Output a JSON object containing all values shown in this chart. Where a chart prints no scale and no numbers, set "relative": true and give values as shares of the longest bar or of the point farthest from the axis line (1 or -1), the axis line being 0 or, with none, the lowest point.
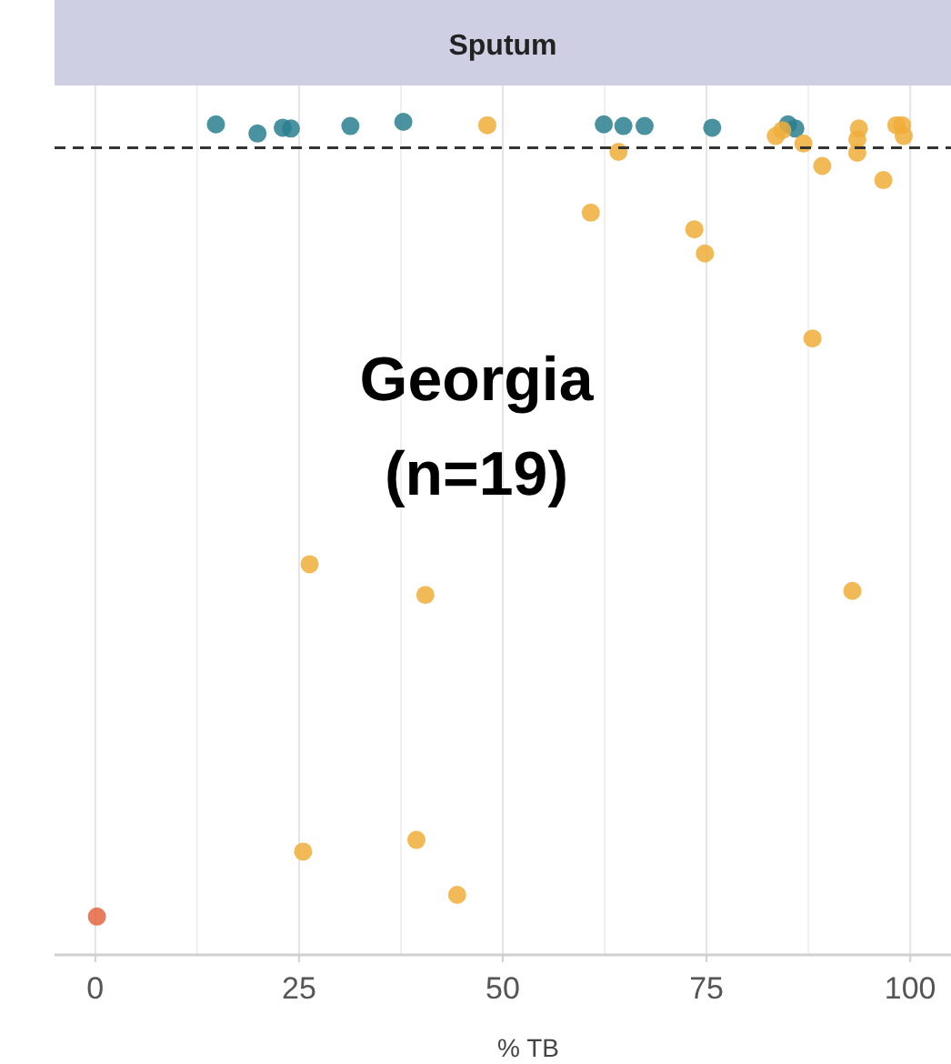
{
  "chart_data": {
    "type": "scatter",
    "title": "Sputum",
    "xlabel": "% TB",
    "relative": true,
    "xlim": [
      -5,
      105
    ],
    "xticks": [
      0,
      25,
      50,
      75,
      100
    ],
    "grid": "x",
    "marker": "circle",
    "annotations": [
      "Georgia\n(n=19)"
    ],
    "ref_lines": [
      {
        "axis": "y",
        "value": 0.969,
        "color": "#333333",
        "line_style": "dashed"
      }
    ],
    "series": [
      {
        "color": "#2a7f8f",
        "x": [
          14.8,
          19.9,
          23.0,
          24.0,
          31.3,
          37.8,
          62.4,
          64.8,
          67.4,
          75.7,
          85.0,
          85.9
        ],
        "values": [
          0.997,
          0.986,
          0.993,
          0.992,
          0.995,
          1,
          0.997,
          0.995,
          0.995,
          0.993,
          0.997,
          0.992
        ]
      },
      {
        "color": "#f0ad3a",
        "x": [
          48.1,
          64.2,
          60.8,
          73.5,
          74.8,
          83.5,
          84.3,
          86.9,
          89.2,
          93.7,
          93.5,
          93.5,
          96.7,
          98.3,
          99.0,
          99.2,
          88.0,
          26.3,
          40.5,
          92.9,
          25.5,
          39.4,
          44.4
        ],
        "values": [
          0.996,
          0.964,
          0.891,
          0.871,
          0.842,
          0.983,
          0.99,
          0.974,
          0.947,
          0.992,
          0.979,
          0.963,
          0.93,
          0.996,
          0.996,
          0.983,
          0.74,
          0.469,
          0.432,
          0.437,
          0.124,
          0.138,
          0.072
        ]
      },
      {
        "color": "#e4653f",
        "x": [
          0.2
        ],
        "values": [
          0.046
        ]
      }
    ]
  }
}
